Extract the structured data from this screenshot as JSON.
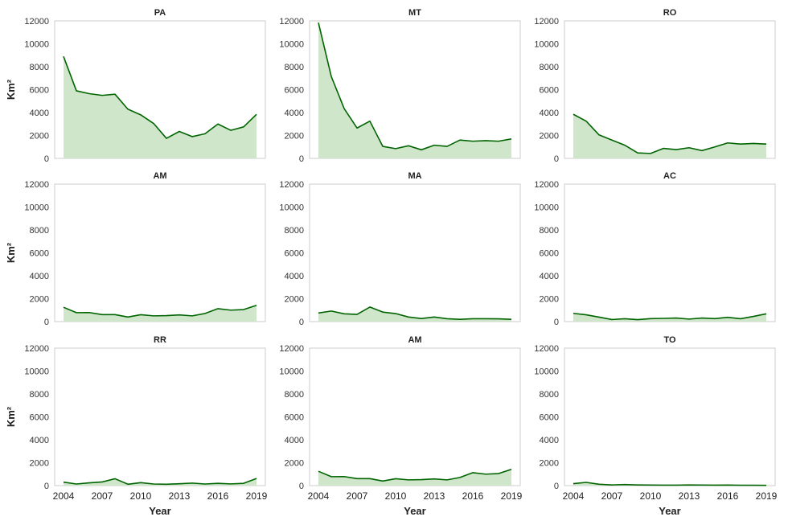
{
  "colors": {
    "line": "#006400",
    "fill": "#cfe6cb",
    "frame": "#cccccc"
  },
  "chart_data": [
    {
      "type": "area",
      "title": "PA",
      "ylabel": "Km²",
      "xlabel": "",
      "ylim": [
        0,
        12000
      ],
      "yticks": [
        0,
        2000,
        4000,
        6000,
        8000,
        10000,
        12000
      ],
      "x": [
        2004,
        2005,
        2006,
        2007,
        2008,
        2009,
        2010,
        2011,
        2012,
        2013,
        2014,
        2015,
        2016,
        2017,
        2018,
        2019
      ],
      "xticks": [],
      "values": [
        8900,
        5900,
        5650,
        5500,
        5600,
        4300,
        3800,
        3050,
        1750,
        2350,
        1900,
        2150,
        3000,
        2450,
        2750,
        3850
      ],
      "grid": false
    },
    {
      "type": "area",
      "title": "MT",
      "ylabel": "",
      "xlabel": "",
      "ylim": [
        0,
        12000
      ],
      "yticks": [
        0,
        2000,
        4000,
        6000,
        8000,
        10000,
        12000
      ],
      "x": [
        2004,
        2005,
        2006,
        2007,
        2008,
        2009,
        2010,
        2011,
        2012,
        2013,
        2014,
        2015,
        2016,
        2017,
        2018,
        2019
      ],
      "xticks": [],
      "values": [
        11850,
        7150,
        4350,
        2650,
        3250,
        1050,
        850,
        1100,
        750,
        1150,
        1050,
        1600,
        1500,
        1550,
        1500,
        1700
      ],
      "grid": false
    },
    {
      "type": "area",
      "title": "RO",
      "ylabel": "",
      "xlabel": "",
      "ylim": [
        0,
        12000
      ],
      "yticks": [
        0,
        2000,
        4000,
        6000,
        8000,
        10000,
        12000
      ],
      "x": [
        2004,
        2005,
        2006,
        2007,
        2008,
        2009,
        2010,
        2011,
        2012,
        2013,
        2014,
        2015,
        2016,
        2017,
        2018,
        2019
      ],
      "xticks": [],
      "values": [
        3850,
        3250,
        2050,
        1600,
        1150,
        480,
        430,
        870,
        770,
        930,
        680,
        1000,
        1350,
        1250,
        1300,
        1250
      ],
      "grid": false
    },
    {
      "type": "area",
      "title": "AM",
      "ylabel": "Km²",
      "xlabel": "",
      "ylim": [
        0,
        12000
      ],
      "yticks": [
        0,
        2000,
        4000,
        6000,
        8000,
        10000,
        12000
      ],
      "x": [
        2004,
        2005,
        2006,
        2007,
        2008,
        2009,
        2010,
        2011,
        2012,
        2013,
        2014,
        2015,
        2016,
        2017,
        2018,
        2019
      ],
      "xticks": [],
      "values": [
        1250,
        780,
        790,
        610,
        610,
        400,
        600,
        500,
        520,
        580,
        500,
        710,
        1130,
        1000,
        1050,
        1420
      ],
      "grid": false
    },
    {
      "type": "area",
      "title": "MA",
      "ylabel": "",
      "xlabel": "",
      "ylim": [
        0,
        12000
      ],
      "yticks": [
        0,
        2000,
        4000,
        6000,
        8000,
        10000,
        12000
      ],
      "x": [
        2004,
        2005,
        2006,
        2007,
        2008,
        2009,
        2010,
        2011,
        2012,
        2013,
        2014,
        2015,
        2016,
        2017,
        2018,
        2019
      ],
      "xticks": [],
      "values": [
        750,
        920,
        680,
        630,
        1270,
        830,
        700,
        400,
        270,
        400,
        250,
        200,
        250,
        250,
        240,
        200
      ],
      "grid": false
    },
    {
      "type": "area",
      "title": "AC",
      "ylabel": "",
      "xlabel": "",
      "ylim": [
        0,
        12000
      ],
      "yticks": [
        0,
        2000,
        4000,
        6000,
        8000,
        10000,
        12000
      ],
      "x": [
        2004,
        2005,
        2006,
        2007,
        2008,
        2009,
        2010,
        2011,
        2012,
        2013,
        2014,
        2015,
        2016,
        2017,
        2018,
        2019
      ],
      "xticks": [],
      "values": [
        720,
        590,
        390,
        180,
        250,
        170,
        260,
        280,
        310,
        220,
        310,
        260,
        370,
        250,
        450,
        680
      ],
      "grid": false
    },
    {
      "type": "area",
      "title": "RR",
      "ylabel": "Km²",
      "xlabel": "Year",
      "ylim": [
        0,
        12000
      ],
      "yticks": [
        0,
        2000,
        4000,
        6000,
        8000,
        10000,
        12000
      ],
      "x": [
        2004,
        2005,
        2006,
        2007,
        2008,
        2009,
        2010,
        2011,
        2012,
        2013,
        2014,
        2015,
        2016,
        2017,
        2018,
        2019
      ],
      "xticks": [
        2004,
        2007,
        2010,
        2013,
        2016,
        2019
      ],
      "values": [
        300,
        140,
        240,
        320,
        600,
        120,
        260,
        140,
        120,
        160,
        220,
        140,
        200,
        150,
        200,
        620
      ],
      "grid": false
    },
    {
      "type": "area",
      "title": "AM",
      "ylabel": "",
      "xlabel": "Year",
      "ylim": [
        0,
        12000
      ],
      "yticks": [
        0,
        2000,
        4000,
        6000,
        8000,
        10000,
        12000
      ],
      "x": [
        2004,
        2005,
        2006,
        2007,
        2008,
        2009,
        2010,
        2011,
        2012,
        2013,
        2014,
        2015,
        2016,
        2017,
        2018,
        2019
      ],
      "xticks": [
        2004,
        2007,
        2010,
        2013,
        2016,
        2019
      ],
      "values": [
        1250,
        780,
        790,
        610,
        610,
        400,
        600,
        500,
        520,
        580,
        500,
        710,
        1130,
        1000,
        1050,
        1420
      ],
      "grid": false
    },
    {
      "type": "area",
      "title": "TO",
      "ylabel": "",
      "xlabel": "Year",
      "ylim": [
        0,
        12000
      ],
      "yticks": [
        0,
        2000,
        4000,
        6000,
        8000,
        10000,
        12000
      ],
      "x": [
        2004,
        2005,
        2006,
        2007,
        2008,
        2009,
        2010,
        2011,
        2012,
        2013,
        2014,
        2015,
        2016,
        2017,
        2018,
        2019
      ],
      "xticks": [
        2004,
        2007,
        2010,
        2013,
        2016,
        2019
      ],
      "values": [
        170,
        280,
        120,
        60,
        90,
        60,
        50,
        40,
        40,
        60,
        50,
        40,
        50,
        30,
        30,
        20
      ],
      "grid": false
    }
  ]
}
